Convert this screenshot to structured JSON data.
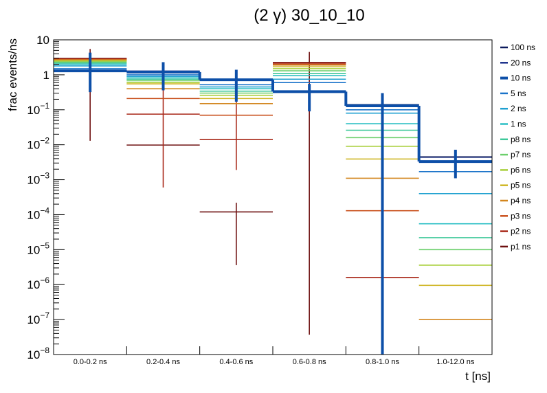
{
  "chart_data": {
    "type": "histogram",
    "title": "(2 γ) 30_10_10",
    "xlabel": "t [ns]",
    "ylabel": "frac events/ns",
    "yscale": "log",
    "ylim": [
      1e-08,
      10
    ],
    "categories": [
      "0.0-0.2 ns",
      "0.2-0.4 ns",
      "0.4-0.6 ns",
      "0.6-0.8 ns",
      "0.8-1.0 ns",
      "1.0-12.0 ns"
    ],
    "y_ticks": [
      {
        "exp": -8,
        "label_base": "10",
        "label_exp": "−8"
      },
      {
        "exp": -7,
        "label_base": "10",
        "label_exp": "−7"
      },
      {
        "exp": -6,
        "label_base": "10",
        "label_exp": "−6"
      },
      {
        "exp": -5,
        "label_base": "10",
        "label_exp": "−5"
      },
      {
        "exp": -4,
        "label_base": "10",
        "label_exp": "−4"
      },
      {
        "exp": -3,
        "label_base": "10",
        "label_exp": "−3"
      },
      {
        "exp": -2,
        "label_base": "10",
        "label_exp": "−2"
      },
      {
        "exp": -1,
        "label_base": "10",
        "label_exp": "−1"
      },
      {
        "exp": 0,
        "label_base": "1",
        "label_exp": ""
      },
      {
        "exp": 1,
        "label_base": "10",
        "label_exp": ""
      }
    ],
    "series": [
      {
        "name": "100 ns",
        "color": "#0b1a5c",
        "values": [
          1.3,
          1.25,
          0.72,
          0.33,
          0.14,
          0.0045
        ],
        "emphasis": false
      },
      {
        "name": "20 ns",
        "color": "#1a2f8a",
        "values": [
          1.35,
          1.28,
          0.7,
          0.34,
          0.135,
          0.0044
        ],
        "emphasis": false
      },
      {
        "name": "10 ns",
        "color": "#0d4fa8",
        "values": [
          1.3,
          1.2,
          0.72,
          0.33,
          0.13,
          0.0033
        ],
        "emphasis": true,
        "errors": [
          [
            0.32,
            4.3
          ],
          [
            0.36,
            2.3
          ],
          [
            0.17,
            1.4
          ],
          [
            0.09,
            0.55
          ],
          [
            1e-08,
            0.3
          ],
          [
            0.0011,
            0.0072
          ]
        ]
      },
      {
        "name": "5 ns",
        "color": "#1a73c9",
        "values": [
          1.5,
          1.0,
          0.52,
          0.6,
          0.1,
          0.0017
        ],
        "emphasis": false
      },
      {
        "name": "2 ns",
        "color": "#1ea0d0",
        "values": [
          1.8,
          0.9,
          0.45,
          0.75,
          0.08,
          0.0004
        ],
        "emphasis": false
      },
      {
        "name": "1 ns",
        "color": "#2bbfc4",
        "values": [
          2.0,
          0.82,
          0.4,
          0.95,
          0.04,
          5.5e-05
        ],
        "emphasis": false
      },
      {
        "name": "p8 ns",
        "color": "#3ec89a",
        "values": [
          2.15,
          0.75,
          0.34,
          1.1,
          0.026,
          2.2e-05
        ],
        "emphasis": false
      },
      {
        "name": "p7 ns",
        "color": "#6ccf6c",
        "values": [
          2.3,
          0.68,
          0.3,
          1.3,
          0.016,
          1e-05
        ],
        "emphasis": false
      },
      {
        "name": "p6 ns",
        "color": "#a8cf3a",
        "values": [
          2.45,
          0.6,
          0.26,
          1.5,
          0.009,
          3.6e-06
        ],
        "emphasis": false
      },
      {
        "name": "p5 ns",
        "color": "#cfb727",
        "values": [
          2.55,
          0.55,
          0.21,
          1.7,
          0.0039,
          9.5e-07
        ],
        "emphasis": false
      },
      {
        "name": "p4 ns",
        "color": "#d3861e",
        "values": [
          2.65,
          0.4,
          0.15,
          1.9,
          0.0011,
          1e-07
        ],
        "emphasis": false
      },
      {
        "name": "p3 ns",
        "color": "#c9501c",
        "values": [
          2.75,
          0.21,
          0.07,
          2.0,
          0.00013,
          null
        ],
        "emphasis": false
      },
      {
        "name": "p2 ns",
        "color": "#a82818",
        "values": [
          2.85,
          0.075,
          0.014,
          2.15,
          1.6e-06,
          null
        ],
        "emphasis": false,
        "errors": [
          null,
          [
            0.0006,
            0.5
          ],
          [
            0.0019,
            0.19
          ],
          [
            null,
            null
          ],
          [
            null,
            null
          ],
          [
            null,
            null
          ]
        ]
      },
      {
        "name": "p1 ns",
        "color": "#6e1010",
        "values": [
          2.95,
          0.0098,
          0.00012,
          2.25,
          null,
          null
        ],
        "emphasis": false,
        "errors": [
          [
            0.013,
            5.5
          ],
          [
            null,
            null
          ],
          [
            3.6e-06,
            0.00022
          ],
          [
            3.7e-08,
            4.5
          ],
          [
            null,
            null
          ],
          [
            null,
            null
          ]
        ]
      }
    ]
  }
}
